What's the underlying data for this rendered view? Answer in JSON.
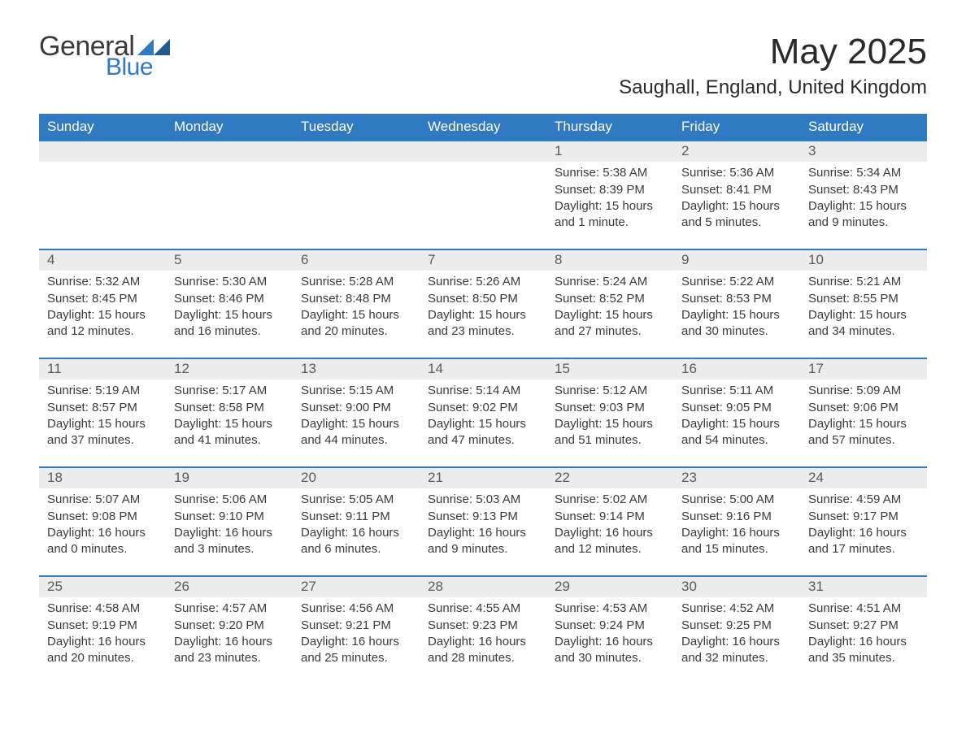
{
  "logo": {
    "general": "General",
    "blue": "Blue"
  },
  "title": "May 2025",
  "location": "Saughall, England, United Kingdom",
  "colors": {
    "header_blue": "#2f7ac0",
    "row_grey": "#ececec",
    "text": "#333333",
    "background": "#ffffff"
  },
  "day_headers": [
    "Sunday",
    "Monday",
    "Tuesday",
    "Wednesday",
    "Thursday",
    "Friday",
    "Saturday"
  ],
  "weeks": [
    {
      "days": [
        {
          "num": "",
          "sunrise": "",
          "sunset": "",
          "daylight1": "",
          "daylight2": ""
        },
        {
          "num": "",
          "sunrise": "",
          "sunset": "",
          "daylight1": "",
          "daylight2": ""
        },
        {
          "num": "",
          "sunrise": "",
          "sunset": "",
          "daylight1": "",
          "daylight2": ""
        },
        {
          "num": "",
          "sunrise": "",
          "sunset": "",
          "daylight1": "",
          "daylight2": ""
        },
        {
          "num": "1",
          "sunrise": "Sunrise: 5:38 AM",
          "sunset": "Sunset: 8:39 PM",
          "daylight1": "Daylight: 15 hours",
          "daylight2": "and 1 minute."
        },
        {
          "num": "2",
          "sunrise": "Sunrise: 5:36 AM",
          "sunset": "Sunset: 8:41 PM",
          "daylight1": "Daylight: 15 hours",
          "daylight2": "and 5 minutes."
        },
        {
          "num": "3",
          "sunrise": "Sunrise: 5:34 AM",
          "sunset": "Sunset: 8:43 PM",
          "daylight1": "Daylight: 15 hours",
          "daylight2": "and 9 minutes."
        }
      ]
    },
    {
      "days": [
        {
          "num": "4",
          "sunrise": "Sunrise: 5:32 AM",
          "sunset": "Sunset: 8:45 PM",
          "daylight1": "Daylight: 15 hours",
          "daylight2": "and 12 minutes."
        },
        {
          "num": "5",
          "sunrise": "Sunrise: 5:30 AM",
          "sunset": "Sunset: 8:46 PM",
          "daylight1": "Daylight: 15 hours",
          "daylight2": "and 16 minutes."
        },
        {
          "num": "6",
          "sunrise": "Sunrise: 5:28 AM",
          "sunset": "Sunset: 8:48 PM",
          "daylight1": "Daylight: 15 hours",
          "daylight2": "and 20 minutes."
        },
        {
          "num": "7",
          "sunrise": "Sunrise: 5:26 AM",
          "sunset": "Sunset: 8:50 PM",
          "daylight1": "Daylight: 15 hours",
          "daylight2": "and 23 minutes."
        },
        {
          "num": "8",
          "sunrise": "Sunrise: 5:24 AM",
          "sunset": "Sunset: 8:52 PM",
          "daylight1": "Daylight: 15 hours",
          "daylight2": "and 27 minutes."
        },
        {
          "num": "9",
          "sunrise": "Sunrise: 5:22 AM",
          "sunset": "Sunset: 8:53 PM",
          "daylight1": "Daylight: 15 hours",
          "daylight2": "and 30 minutes."
        },
        {
          "num": "10",
          "sunrise": "Sunrise: 5:21 AM",
          "sunset": "Sunset: 8:55 PM",
          "daylight1": "Daylight: 15 hours",
          "daylight2": "and 34 minutes."
        }
      ]
    },
    {
      "days": [
        {
          "num": "11",
          "sunrise": "Sunrise: 5:19 AM",
          "sunset": "Sunset: 8:57 PM",
          "daylight1": "Daylight: 15 hours",
          "daylight2": "and 37 minutes."
        },
        {
          "num": "12",
          "sunrise": "Sunrise: 5:17 AM",
          "sunset": "Sunset: 8:58 PM",
          "daylight1": "Daylight: 15 hours",
          "daylight2": "and 41 minutes."
        },
        {
          "num": "13",
          "sunrise": "Sunrise: 5:15 AM",
          "sunset": "Sunset: 9:00 PM",
          "daylight1": "Daylight: 15 hours",
          "daylight2": "and 44 minutes."
        },
        {
          "num": "14",
          "sunrise": "Sunrise: 5:14 AM",
          "sunset": "Sunset: 9:02 PM",
          "daylight1": "Daylight: 15 hours",
          "daylight2": "and 47 minutes."
        },
        {
          "num": "15",
          "sunrise": "Sunrise: 5:12 AM",
          "sunset": "Sunset: 9:03 PM",
          "daylight1": "Daylight: 15 hours",
          "daylight2": "and 51 minutes."
        },
        {
          "num": "16",
          "sunrise": "Sunrise: 5:11 AM",
          "sunset": "Sunset: 9:05 PM",
          "daylight1": "Daylight: 15 hours",
          "daylight2": "and 54 minutes."
        },
        {
          "num": "17",
          "sunrise": "Sunrise: 5:09 AM",
          "sunset": "Sunset: 9:06 PM",
          "daylight1": "Daylight: 15 hours",
          "daylight2": "and 57 minutes."
        }
      ]
    },
    {
      "days": [
        {
          "num": "18",
          "sunrise": "Sunrise: 5:07 AM",
          "sunset": "Sunset: 9:08 PM",
          "daylight1": "Daylight: 16 hours",
          "daylight2": "and 0 minutes."
        },
        {
          "num": "19",
          "sunrise": "Sunrise: 5:06 AM",
          "sunset": "Sunset: 9:10 PM",
          "daylight1": "Daylight: 16 hours",
          "daylight2": "and 3 minutes."
        },
        {
          "num": "20",
          "sunrise": "Sunrise: 5:05 AM",
          "sunset": "Sunset: 9:11 PM",
          "daylight1": "Daylight: 16 hours",
          "daylight2": "and 6 minutes."
        },
        {
          "num": "21",
          "sunrise": "Sunrise: 5:03 AM",
          "sunset": "Sunset: 9:13 PM",
          "daylight1": "Daylight: 16 hours",
          "daylight2": "and 9 minutes."
        },
        {
          "num": "22",
          "sunrise": "Sunrise: 5:02 AM",
          "sunset": "Sunset: 9:14 PM",
          "daylight1": "Daylight: 16 hours",
          "daylight2": "and 12 minutes."
        },
        {
          "num": "23",
          "sunrise": "Sunrise: 5:00 AM",
          "sunset": "Sunset: 9:16 PM",
          "daylight1": "Daylight: 16 hours",
          "daylight2": "and 15 minutes."
        },
        {
          "num": "24",
          "sunrise": "Sunrise: 4:59 AM",
          "sunset": "Sunset: 9:17 PM",
          "daylight1": "Daylight: 16 hours",
          "daylight2": "and 17 minutes."
        }
      ]
    },
    {
      "days": [
        {
          "num": "25",
          "sunrise": "Sunrise: 4:58 AM",
          "sunset": "Sunset: 9:19 PM",
          "daylight1": "Daylight: 16 hours",
          "daylight2": "and 20 minutes."
        },
        {
          "num": "26",
          "sunrise": "Sunrise: 4:57 AM",
          "sunset": "Sunset: 9:20 PM",
          "daylight1": "Daylight: 16 hours",
          "daylight2": "and 23 minutes."
        },
        {
          "num": "27",
          "sunrise": "Sunrise: 4:56 AM",
          "sunset": "Sunset: 9:21 PM",
          "daylight1": "Daylight: 16 hours",
          "daylight2": "and 25 minutes."
        },
        {
          "num": "28",
          "sunrise": "Sunrise: 4:55 AM",
          "sunset": "Sunset: 9:23 PM",
          "daylight1": "Daylight: 16 hours",
          "daylight2": "and 28 minutes."
        },
        {
          "num": "29",
          "sunrise": "Sunrise: 4:53 AM",
          "sunset": "Sunset: 9:24 PM",
          "daylight1": "Daylight: 16 hours",
          "daylight2": "and 30 minutes."
        },
        {
          "num": "30",
          "sunrise": "Sunrise: 4:52 AM",
          "sunset": "Sunset: 9:25 PM",
          "daylight1": "Daylight: 16 hours",
          "daylight2": "and 32 minutes."
        },
        {
          "num": "31",
          "sunrise": "Sunrise: 4:51 AM",
          "sunset": "Sunset: 9:27 PM",
          "daylight1": "Daylight: 16 hours",
          "daylight2": "and 35 minutes."
        }
      ]
    }
  ]
}
